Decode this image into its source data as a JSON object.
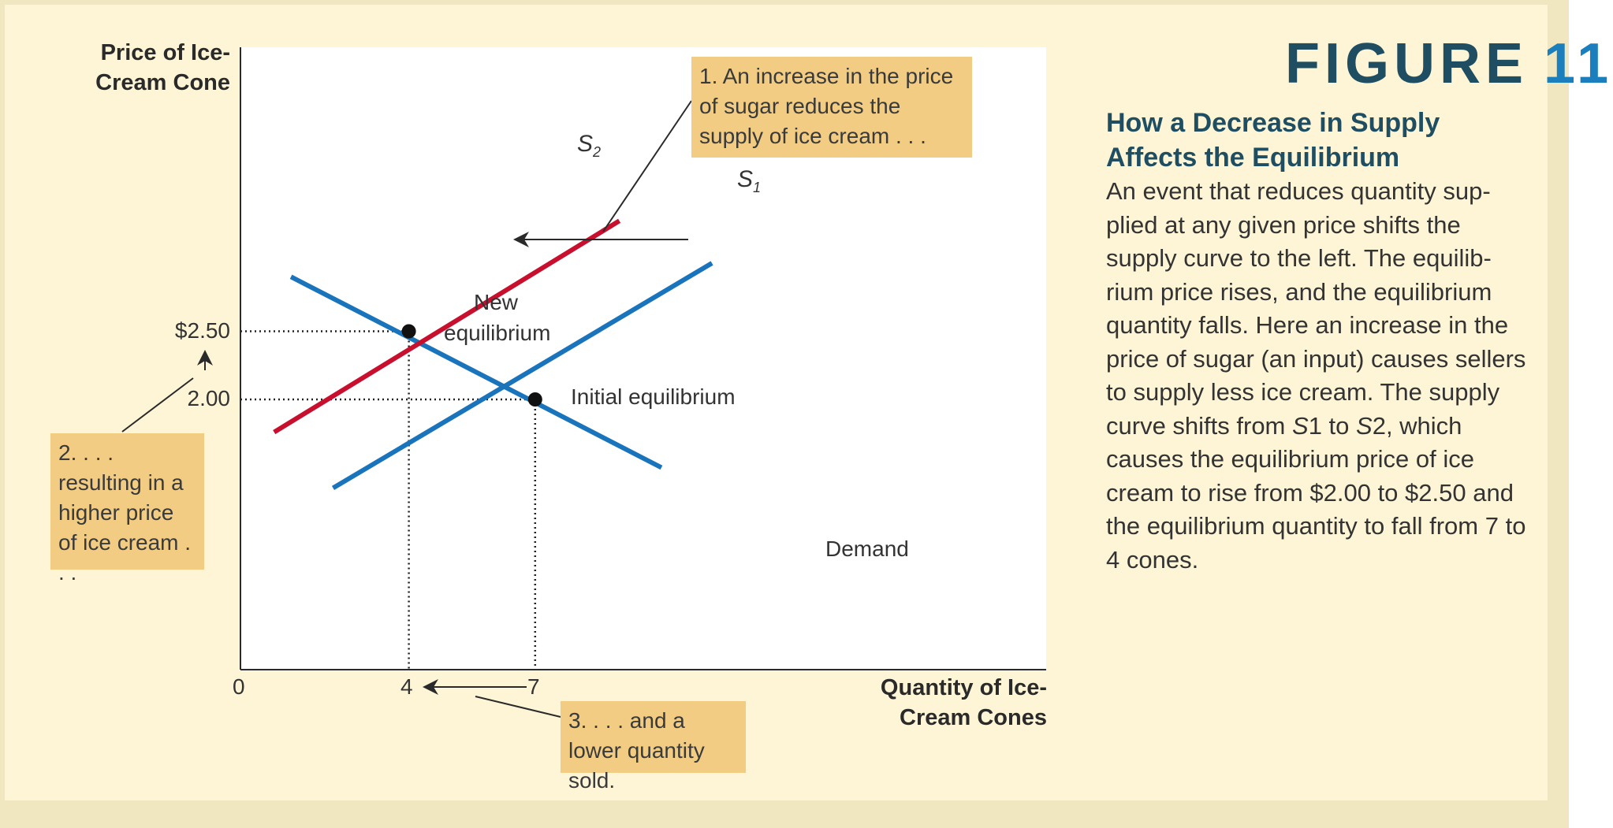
{
  "figure": {
    "label": "FIGURE",
    "number": "11",
    "title": "How a Decrease in Supply Affects the Equilibrium",
    "body_parts": [
      "An event that reduces quantity sup-plied at any given price shifts the supply curve to the left. The equilib-rium price rises, and the equilibrium quantity falls. Here an increase in the price of sugar (an input) causes sellers to supply less ice cream. The supply curve shifts from ",
      "S",
      "1 to ",
      "S",
      "2, which causes the equilibrium price of ice cream to rise from $2.00 to $2.50 and the equilibrium quantity to fall from 7 to 4 cones."
    ]
  },
  "axes": {
    "y_title": "Price of Ice-Cream Cone",
    "x_title": "Quantity of Ice-Cream Cones",
    "origin": "0",
    "price_ticks": [
      "$2.50",
      "2.00"
    ],
    "quantity_ticks": [
      "4",
      "7"
    ]
  },
  "callouts": {
    "c1": "1. An increase in the price of sugar reduces the supply of ice cream . . .",
    "c2": "2. . . . resulting in a higher price of ice cream . . .",
    "c3": "3. . . . and a lower quantity sold."
  },
  "labels": {
    "s2_letter": "S",
    "s2_sub": "2",
    "s1_letter": "S",
    "s1_sub": "1",
    "demand": "Demand",
    "new_eq_line1": "New",
    "new_eq_line2": "equilibrium",
    "initial_eq": "Initial equilibrium"
  },
  "colors": {
    "s1": "#1a74bc",
    "s2": "#c8102e",
    "demand": "#1a74bc",
    "accent": "#1f4e63",
    "callout": "#f1cc82"
  },
  "chart_data": {
    "type": "line",
    "xlabel": "Quantity of Ice-Cream Cones",
    "ylabel": "Price of Ice-Cream Cone",
    "series": [
      {
        "name": "Demand",
        "x": [
          1.2,
          10.0
        ],
        "y": [
          2.9,
          1.5
        ]
      },
      {
        "name": "S1",
        "x": [
          2.2,
          11.2
        ],
        "y": [
          1.35,
          3.0
        ]
      },
      {
        "name": "S2",
        "x": [
          0.8,
          9.0
        ],
        "y": [
          1.76,
          3.31
        ]
      }
    ],
    "equilibria": [
      {
        "label": "Initial equilibrium",
        "x": 7,
        "y": 2.0
      },
      {
        "label": "New equilibrium",
        "x": 4,
        "y": 2.5
      }
    ],
    "shift": {
      "from": "S1",
      "to": "S2",
      "direction": "left"
    }
  }
}
